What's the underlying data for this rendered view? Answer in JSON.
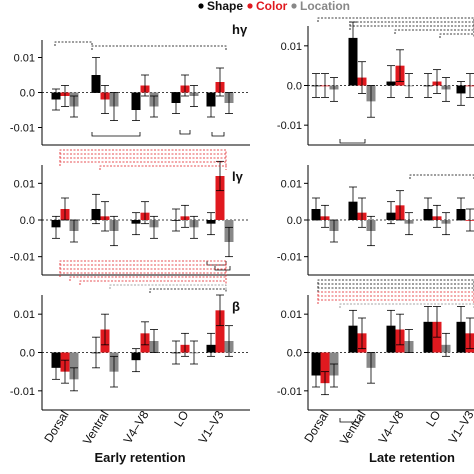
{
  "legend": {
    "items": [
      {
        "label": "Shape",
        "color": "#000000"
      },
      {
        "label": "Color",
        "color": "#e0191f"
      },
      {
        "label": "Location",
        "color": "#888888"
      }
    ]
  },
  "colors": {
    "shape": "#000000",
    "color": "#e0191f",
    "location": "#888888",
    "sig_shape": "#000000",
    "sig_color": "#e0191f",
    "sig_location": "#888888"
  },
  "chart_data": [
    {
      "type": "bar",
      "panel_label": "hγ",
      "column": "Early retention",
      "categories": [
        "Dorsal",
        "Ventral",
        "V4–V8",
        "LO",
        "V1–V3"
      ],
      "ylim": [
        -0.015,
        0.015
      ],
      "yticks": [
        "0.01",
        "0.0",
        "-0.01"
      ],
      "ytick_values": [
        0.01,
        0.0,
        -0.01
      ],
      "series": [
        {
          "name": "Shape",
          "values": [
            -0.002,
            0.005,
            -0.005,
            -0.003,
            -0.004
          ],
          "errors": [
            0.003,
            0.005,
            0.003,
            0.003,
            0.003
          ]
        },
        {
          "name": "Color",
          "values": [
            -0.001,
            -0.002,
            0.002,
            0.002,
            0.003
          ],
          "errors": [
            0.003,
            0.004,
            0.003,
            0.003,
            0.004
          ]
        },
        {
          "name": "Location",
          "values": [
            -0.004,
            -0.004,
            -0.004,
            -0.001,
            -0.003
          ],
          "errors": [
            0.003,
            0.004,
            0.003,
            0.003,
            0.003
          ]
        }
      ]
    },
    {
      "type": "bar",
      "panel_label": "",
      "column": "Late retention",
      "categories": [
        "Dorsal",
        "Ventral",
        "V4–V8",
        "LO",
        "V1–V3"
      ],
      "ylim": [
        -0.015,
        0.015
      ],
      "yticks": [
        "0.01",
        "0.0",
        "-0.01"
      ],
      "ytick_values": [
        0.01,
        0.0,
        -0.01
      ],
      "series": [
        {
          "name": "Shape",
          "values": [
            0.0,
            0.012,
            0.001,
            0.0,
            -0.002
          ],
          "errors": [
            0.003,
            0.004,
            0.004,
            0.003,
            0.003
          ]
        },
        {
          "name": "Color",
          "values": [
            0.0,
            0.002,
            0.005,
            0.001,
            0.0
          ],
          "errors": [
            0.003,
            0.004,
            0.004,
            0.003,
            0.003
          ]
        },
        {
          "name": "Location",
          "values": [
            -0.001,
            -0.004,
            0.0,
            -0.001,
            -0.002
          ],
          "errors": [
            0.003,
            0.004,
            0.003,
            0.003,
            0.003
          ]
        }
      ]
    },
    {
      "type": "bar",
      "panel_label": "lγ",
      "column": "Early retention",
      "categories": [
        "Dorsal",
        "Ventral",
        "V4–V8",
        "LO",
        "V1–V3"
      ],
      "ylim": [
        -0.015,
        0.015
      ],
      "yticks": [
        "0.01",
        "0.0",
        "-0.01"
      ],
      "ytick_values": [
        0.01,
        0.0,
        -0.01
      ],
      "series": [
        {
          "name": "Shape",
          "values": [
            -0.002,
            0.003,
            -0.001,
            0.0,
            -0.001
          ],
          "errors": [
            0.003,
            0.004,
            0.003,
            0.003,
            0.003
          ]
        },
        {
          "name": "Color",
          "values": [
            0.003,
            0.001,
            0.002,
            0.001,
            0.012
          ],
          "errors": [
            0.003,
            0.004,
            0.003,
            0.003,
            0.004
          ]
        },
        {
          "name": "Location",
          "values": [
            -0.003,
            -0.003,
            -0.002,
            -0.002,
            -0.006
          ],
          "errors": [
            0.003,
            0.004,
            0.003,
            0.003,
            0.004
          ]
        }
      ]
    },
    {
      "type": "bar",
      "panel_label": "",
      "column": "Late retention",
      "categories": [
        "Dorsal",
        "Ventral",
        "V4–V8",
        "LO",
        "V1–V3"
      ],
      "ylim": [
        -0.015,
        0.015
      ],
      "yticks": [
        "0.01",
        "0.0",
        "-0.01"
      ],
      "ytick_values": [
        0.01,
        0.0,
        -0.01
      ],
      "series": [
        {
          "name": "Shape",
          "values": [
            0.003,
            0.005,
            0.002,
            0.003,
            0.003
          ],
          "errors": [
            0.003,
            0.004,
            0.003,
            0.003,
            0.003
          ]
        },
        {
          "name": "Color",
          "values": [
            0.001,
            0.002,
            0.004,
            0.001,
            0.0
          ],
          "errors": [
            0.003,
            0.004,
            0.004,
            0.003,
            0.003
          ]
        },
        {
          "name": "Location",
          "values": [
            -0.003,
            -0.003,
            -0.001,
            -0.001,
            -0.001
          ],
          "errors": [
            0.003,
            0.004,
            0.003,
            0.003,
            0.003
          ]
        }
      ]
    },
    {
      "type": "bar",
      "panel_label": "β",
      "column": "Early retention",
      "categories": [
        "Dorsal",
        "Ventral",
        "V4–V8",
        "LO",
        "V1–V3"
      ],
      "ylim": [
        -0.015,
        0.015
      ],
      "yticks": [
        "0.01",
        "0.0",
        "-0.01"
      ],
      "ytick_values": [
        0.01,
        0.0,
        -0.01
      ],
      "series": [
        {
          "name": "Shape",
          "values": [
            -0.004,
            0.0,
            -0.002,
            0.0,
            0.002
          ],
          "errors": [
            0.003,
            0.004,
            0.003,
            0.003,
            0.003
          ]
        },
        {
          "name": "Color",
          "values": [
            -0.005,
            0.006,
            0.005,
            0.002,
            0.011
          ],
          "errors": [
            0.003,
            0.004,
            0.003,
            0.003,
            0.004
          ]
        },
        {
          "name": "Location",
          "values": [
            -0.007,
            -0.005,
            0.003,
            0.0,
            0.003
          ],
          "errors": [
            0.003,
            0.004,
            0.003,
            0.003,
            0.004
          ]
        }
      ]
    },
    {
      "type": "bar",
      "panel_label": "",
      "column": "Late retention",
      "categories": [
        "Dorsal",
        "Ventral",
        "V4–V8",
        "LO",
        "V1–V3"
      ],
      "ylim": [
        -0.015,
        0.015
      ],
      "yticks": [
        "0.01",
        "0.0",
        "-0.01"
      ],
      "ytick_values": [
        0.01,
        0.0,
        -0.01
      ],
      "series": [
        {
          "name": "Shape",
          "values": [
            -0.006,
            0.007,
            0.007,
            0.008,
            0.008
          ],
          "errors": [
            0.003,
            0.004,
            0.004,
            0.004,
            0.004
          ]
        },
        {
          "name": "Color",
          "values": [
            -0.008,
            0.005,
            0.006,
            0.008,
            0.005
          ],
          "errors": [
            0.003,
            0.004,
            0.004,
            0.004,
            0.004
          ]
        },
        {
          "name": "Location",
          "values": [
            -0.006,
            -0.004,
            0.003,
            0.002,
            0.003
          ],
          "errors": [
            0.003,
            0.004,
            0.003,
            0.003,
            0.003
          ]
        }
      ]
    }
  ],
  "x_axis": {
    "early_categories": [
      "Dorsal",
      "Ventral",
      "V4–V8",
      "LO",
      "V1–V3"
    ],
    "late_categories": [
      "Dorsal",
      "Ventral",
      "V4–V8",
      "LO",
      "V1–V3"
    ],
    "early_label": "Early retention",
    "late_label": "Late retention"
  }
}
